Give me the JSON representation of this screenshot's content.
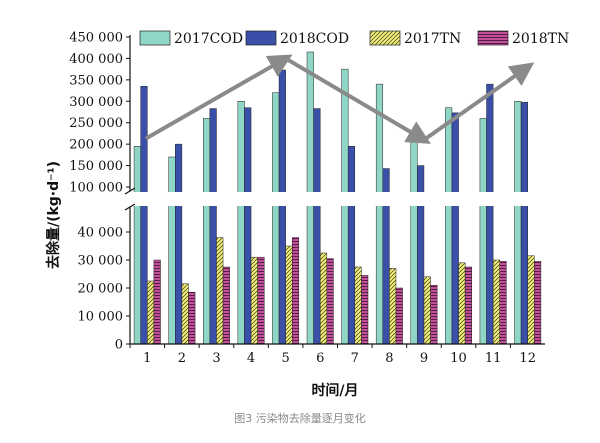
{
  "caption": "图3 污染物去除量逐月变化",
  "colors": {
    "cod2017": "#8fd6c6",
    "cod2018": "#3a4fa8",
    "tn2017": "#f2ee7a",
    "tn2018": "#c2519a",
    "arrow": "#8a8a8a"
  },
  "chart_data": {
    "type": "bar",
    "xlabel": "时间/月",
    "ylabel": "去除量/(kg·d⁻¹)",
    "categories": [
      "1",
      "2",
      "3",
      "4",
      "5",
      "6",
      "7",
      "8",
      "9",
      "10",
      "11",
      "12"
    ],
    "axis_break": {
      "lower_range": [
        0,
        45000
      ],
      "upper_range": [
        100000,
        450000
      ]
    },
    "lower_ticks": [
      {
        "v": 0,
        "label": "0"
      },
      {
        "v": 10000,
        "label": "10 000"
      },
      {
        "v": 20000,
        "label": "20 000"
      },
      {
        "v": 30000,
        "label": "30 000"
      },
      {
        "v": 40000,
        "label": "40 000"
      }
    ],
    "upper_ticks": [
      {
        "v": 100000,
        "label": "100 000"
      },
      {
        "v": 150000,
        "label": "150 000"
      },
      {
        "v": 200000,
        "label": "200 000"
      },
      {
        "v": 250000,
        "label": "250 000"
      },
      {
        "v": 300000,
        "label": "300 000"
      },
      {
        "v": 350000,
        "label": "350 000"
      },
      {
        "v": 400000,
        "label": "400 000"
      },
      {
        "v": 450000,
        "label": "450 000"
      }
    ],
    "series": [
      {
        "name": "2017COD",
        "key": "cod2017",
        "pattern": "solid",
        "values": [
          195000,
          170000,
          260000,
          300000,
          320000,
          415000,
          375000,
          340000,
          210000,
          285000,
          260000,
          300000
        ]
      },
      {
        "name": "2018COD",
        "key": "cod2018",
        "pattern": "solid",
        "values": [
          335000,
          200000,
          283000,
          285000,
          373000,
          283000,
          195000,
          143000,
          150000,
          273000,
          340000,
          298000
        ]
      },
      {
        "name": "2017TN",
        "key": "tn2017",
        "pattern": "diagonal",
        "values": [
          22500,
          21500,
          38000,
          31000,
          35000,
          32500,
          27500,
          27000,
          24000,
          29000,
          30000,
          31500
        ]
      },
      {
        "name": "2018TN",
        "key": "tn2018",
        "pattern": "horizontal",
        "values": [
          30000,
          18500,
          27500,
          31000,
          38000,
          30500,
          24500,
          20000,
          21000,
          27500,
          29500,
          29500
        ]
      }
    ],
    "trend_arrows": [
      {
        "from": {
          "x": "1",
          "y": 215000
        },
        "to": {
          "x": "5",
          "y": 400000
        }
      },
      {
        "from": {
          "x": "5",
          "y": 400000
        },
        "to": {
          "x": "9",
          "y": 210000
        }
      },
      {
        "from": {
          "x": "9",
          "y": 210000
        },
        "to": {
          "x": "12",
          "y": 380000
        }
      }
    ],
    "legend_position": "top"
  }
}
